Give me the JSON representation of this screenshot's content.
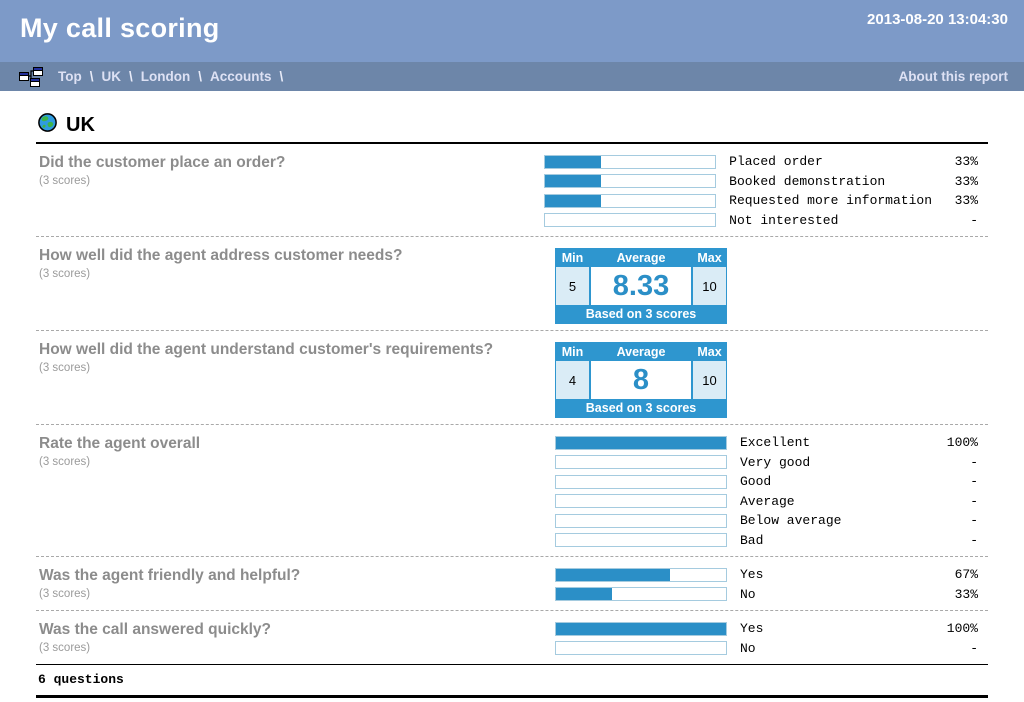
{
  "header": {
    "title": "My call scoring",
    "timestamp": "2013-08-20 13:04:30"
  },
  "breadcrumb": {
    "items": [
      "Top",
      "UK",
      "London",
      "Accounts"
    ],
    "separator": "\\",
    "about_link": "About this report"
  },
  "section": {
    "title": "UK"
  },
  "questions": [
    {
      "title": "Did the customer place an order?",
      "scores_note": "(3 scores)",
      "type": "bars",
      "options": [
        {
          "label": "Placed order",
          "value": "33%",
          "pct": 33
        },
        {
          "label": "Booked demonstration",
          "value": "33%",
          "pct": 33
        },
        {
          "label": "Requested more information",
          "value": "33%",
          "pct": 33
        },
        {
          "label": "Not interested",
          "value": "-",
          "pct": 0
        }
      ]
    },
    {
      "title": "How well did the agent address customer needs?",
      "scores_note": "(3 scores)",
      "type": "stat",
      "stats": {
        "min_label": "Min",
        "avg_label": "Average",
        "max_label": "Max",
        "min": "5",
        "avg": "8.33",
        "max": "10",
        "based_on": "Based on 3 scores"
      }
    },
    {
      "title": "How well did the agent understand customer's requirements?",
      "scores_note": "(3 scores)",
      "type": "stat",
      "stats": {
        "min_label": "Min",
        "avg_label": "Average",
        "max_label": "Max",
        "min": "4",
        "avg": "8",
        "max": "10",
        "based_on": "Based on 3 scores"
      }
    },
    {
      "title": "Rate the agent overall",
      "scores_note": "(3 scores)",
      "type": "bars",
      "options": [
        {
          "label": "Excellent",
          "value": "100%",
          "pct": 100
        },
        {
          "label": "Very good",
          "value": "-",
          "pct": 0
        },
        {
          "label": "Good",
          "value": "-",
          "pct": 0
        },
        {
          "label": "Average",
          "value": "-",
          "pct": 0
        },
        {
          "label": "Below average",
          "value": "-",
          "pct": 0
        },
        {
          "label": "Bad",
          "value": "-",
          "pct": 0
        }
      ]
    },
    {
      "title": "Was the agent friendly and helpful?",
      "scores_note": "(3 scores)",
      "type": "bars",
      "options": [
        {
          "label": "Yes",
          "value": "67%",
          "pct": 67
        },
        {
          "label": "No",
          "value": "33%",
          "pct": 33
        }
      ]
    },
    {
      "title": "Was the call answered quickly?",
      "scores_note": "(3 scores)",
      "type": "bars",
      "options": [
        {
          "label": "Yes",
          "value": "100%",
          "pct": 100
        },
        {
          "label": "No",
          "value": "-",
          "pct": 0
        }
      ]
    }
  ],
  "footer": {
    "question_count": "6 questions"
  },
  "colors": {
    "header_bg": "#7d9ac8",
    "breadcrumb_bg": "#6d86a9",
    "breadcrumb_text": "#dde1f4",
    "accent_blue": "#2b8fc7",
    "stat_header_blue": "#2e96cf",
    "bar_border": "#a5cbdf",
    "light_cell": "#daecf6",
    "question_text": "#8c8c8c"
  }
}
